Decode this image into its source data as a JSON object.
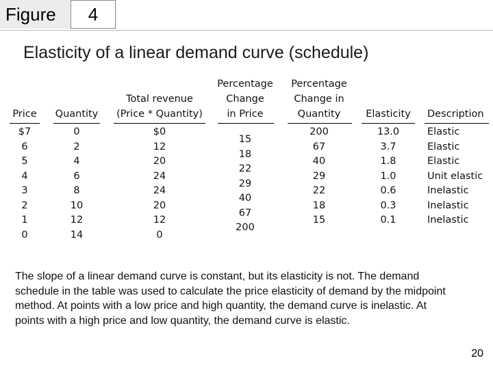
{
  "figure": {
    "word": "Figure",
    "number": "4"
  },
  "title": "Elasticity of a linear demand curve (schedule)",
  "table": {
    "headers": {
      "price": [
        "Price"
      ],
      "quantity": [
        "Quantity"
      ],
      "revenue": [
        "Total revenue",
        "(Price * Quantity)"
      ],
      "pct_price": [
        "Percentage",
        "Change",
        "in Price"
      ],
      "pct_quantity": [
        "Percentage",
        "Change in",
        "Quantity"
      ],
      "elasticity": [
        "Elasticity"
      ],
      "description": [
        "Description"
      ]
    },
    "price": [
      "$7",
      "6",
      "5",
      "4",
      "3",
      "2",
      "1",
      "0"
    ],
    "quantity": [
      "0",
      "2",
      "4",
      "6",
      "8",
      "10",
      "12",
      "14"
    ],
    "revenue": [
      "$0",
      "12",
      "20",
      "24",
      "24",
      "20",
      "12",
      "0"
    ],
    "pct_price": [
      "15",
      "18",
      "22",
      "29",
      "40",
      "67",
      "200"
    ],
    "pct_quantity": [
      "200",
      "67",
      "40",
      "29",
      "22",
      "18",
      "15"
    ],
    "elasticity": [
      "13.0",
      "3.7",
      "1.8",
      "1.0",
      "0.6",
      "0.3",
      "0.1"
    ],
    "description": [
      "Elastic",
      "Elastic",
      "Elastic",
      "Unit elastic",
      "Inelastic",
      "Inelastic",
      "Inelastic"
    ]
  },
  "caption": "The slope of a linear demand curve is constant, but its elasticity is not. The demand schedule in the table was used to calculate the price elasticity of demand by the midpoint method. At points with a low price and high quantity, the demand curve is inelastic. At points with a high price and low quantity, the demand curve is elastic.",
  "page_number": "20"
}
